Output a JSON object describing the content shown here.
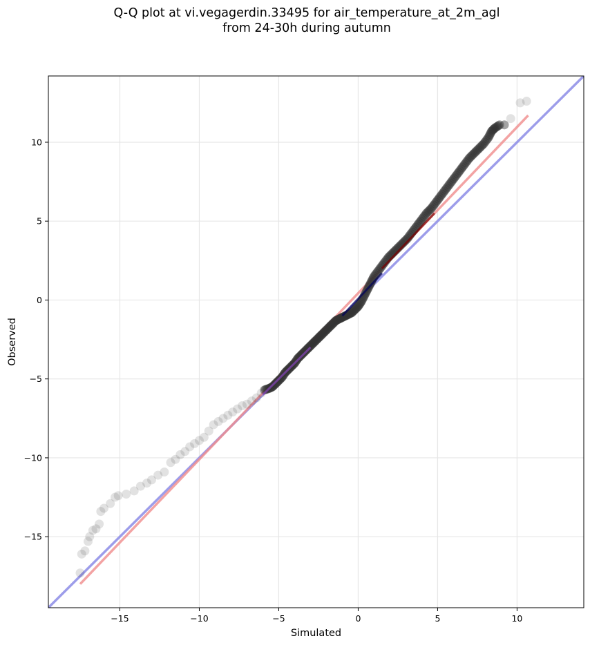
{
  "chart_data": {
    "type": "scatter",
    "title": "Q-Q plot at vi.vegagerdin.33495 for air_temperature_at_2m_agl",
    "subtitle": "from 24-30h during autumn",
    "xlabel": "Simulated",
    "ylabel": "Observed",
    "xlim": [
      -19.5,
      14.2
    ],
    "ylim": [
      -19.5,
      14.2
    ],
    "xticks": [
      -15,
      -10,
      -5,
      0,
      5,
      10
    ],
    "yticks": [
      -15,
      -10,
      -5,
      0,
      5,
      10
    ],
    "xtick_labels": [
      "−15",
      "−10",
      "−5",
      "0",
      "5",
      "10"
    ],
    "ytick_labels": [
      "−15",
      "−10",
      "−5",
      "0",
      "5",
      "10"
    ],
    "grid": true,
    "colors": {
      "points": "#333333",
      "identity_line": "#8c8ce6",
      "fit_line": "#f08c8c",
      "lower_segment": "#8844bb",
      "center_segment": "#00005a",
      "upper_segment": "#7a0000"
    },
    "quantile_points": [
      [
        -17.5,
        -17.3
      ],
      [
        -17.4,
        -16.1
      ],
      [
        -17.2,
        -15.9
      ],
      [
        -17.0,
        -15.3
      ],
      [
        -16.9,
        -15.0
      ],
      [
        -16.7,
        -14.6
      ],
      [
        -16.5,
        -14.5
      ],
      [
        -16.3,
        -14.2
      ],
      [
        -16.2,
        -13.4
      ],
      [
        -16.0,
        -13.2
      ],
      [
        -15.6,
        -12.9
      ],
      [
        -15.3,
        -12.5
      ],
      [
        -15.1,
        -12.4
      ],
      [
        -14.6,
        -12.3
      ],
      [
        -14.1,
        -12.1
      ],
      [
        -13.7,
        -11.8
      ],
      [
        -13.3,
        -11.6
      ],
      [
        -13.0,
        -11.4
      ],
      [
        -12.6,
        -11.1
      ],
      [
        -12.2,
        -10.9
      ],
      [
        -11.8,
        -10.3
      ],
      [
        -11.5,
        -10.1
      ],
      [
        -11.2,
        -9.8
      ],
      [
        -10.9,
        -9.6
      ],
      [
        -10.6,
        -9.3
      ],
      [
        -10.3,
        -9.1
      ],
      [
        -10.0,
        -8.9
      ],
      [
        -9.7,
        -8.7
      ],
      [
        -9.4,
        -8.3
      ],
      [
        -9.1,
        -7.9
      ],
      [
        -8.8,
        -7.7
      ],
      [
        -8.5,
        -7.5
      ],
      [
        -8.2,
        -7.3
      ],
      [
        -7.9,
        -7.1
      ],
      [
        -7.6,
        -6.9
      ],
      [
        -7.3,
        -6.7
      ],
      [
        -7.0,
        -6.6
      ],
      [
        -6.7,
        -6.4
      ],
      [
        -6.4,
        -6.2
      ],
      [
        -6.1,
        -5.9
      ],
      [
        -5.9,
        -5.7
      ],
      [
        -5.6,
        -5.6
      ],
      [
        -5.4,
        -5.5
      ],
      [
        -5.2,
        -5.3
      ],
      [
        -5.0,
        -5.1
      ],
      [
        -4.8,
        -4.9
      ],
      [
        -4.6,
        -4.6
      ],
      [
        -4.4,
        -4.4
      ],
      [
        -4.2,
        -4.2
      ],
      [
        -4.0,
        -4.0
      ],
      [
        -3.8,
        -3.7
      ],
      [
        -3.6,
        -3.5
      ],
      [
        -3.4,
        -3.3
      ],
      [
        -3.2,
        -3.1
      ],
      [
        -3.0,
        -2.9
      ],
      [
        -2.8,
        -2.7
      ],
      [
        -2.6,
        -2.5
      ],
      [
        -2.4,
        -2.3
      ],
      [
        -2.2,
        -2.1
      ],
      [
        -2.0,
        -1.9
      ],
      [
        -1.8,
        -1.7
      ],
      [
        -1.6,
        -1.5
      ],
      [
        -1.4,
        -1.3
      ],
      [
        -1.2,
        -1.2
      ],
      [
        -1.0,
        -1.1
      ],
      [
        -0.8,
        -1.0
      ],
      [
        -0.6,
        -0.9
      ],
      [
        -0.4,
        -0.8
      ],
      [
        -0.2,
        -0.6
      ],
      [
        0.0,
        -0.4
      ],
      [
        0.2,
        -0.1
      ],
      [
        0.4,
        0.3
      ],
      [
        0.6,
        0.7
      ],
      [
        0.8,
        1.1
      ],
      [
        1.0,
        1.5
      ],
      [
        1.3,
        1.9
      ],
      [
        1.6,
        2.3
      ],
      [
        1.9,
        2.7
      ],
      [
        2.2,
        3.0
      ],
      [
        2.5,
        3.3
      ],
      [
        2.8,
        3.6
      ],
      [
        3.1,
        3.9
      ],
      [
        3.4,
        4.3
      ],
      [
        3.7,
        4.7
      ],
      [
        4.0,
        5.1
      ],
      [
        4.3,
        5.5
      ],
      [
        4.6,
        5.8
      ],
      [
        4.9,
        6.2
      ],
      [
        5.2,
        6.6
      ],
      [
        5.5,
        7.0
      ],
      [
        5.8,
        7.4
      ],
      [
        6.1,
        7.8
      ],
      [
        6.4,
        8.2
      ],
      [
        6.7,
        8.6
      ],
      [
        7.0,
        9.0
      ],
      [
        7.3,
        9.3
      ],
      [
        7.6,
        9.6
      ],
      [
        7.9,
        9.9
      ],
      [
        8.2,
        10.3
      ],
      [
        8.4,
        10.7
      ],
      [
        8.6,
        10.9
      ],
      [
        8.9,
        11.1
      ],
      [
        9.2,
        11.1
      ],
      [
        9.6,
        11.5
      ],
      [
        10.2,
        12.5
      ],
      [
        10.6,
        12.6
      ]
    ],
    "identity_line": {
      "x": [
        -19.5,
        14.2
      ],
      "y": [
        -19.5,
        14.2
      ]
    },
    "fit_line": {
      "x": [
        -17.5,
        10.7
      ],
      "y": [
        -18.0,
        11.7
      ]
    },
    "segments": [
      {
        "x": [
          -6.0,
          -3.0
        ],
        "y": [
          -6.0,
          -3.0
        ],
        "color_key": "lower_segment"
      },
      {
        "x": [
          -1.0,
          1.5
        ],
        "y": [
          -1.0,
          1.7
        ],
        "color_key": "center_segment"
      },
      {
        "x": [
          1.5,
          4.8
        ],
        "y": [
          2.0,
          5.5
        ],
        "color_key": "upper_segment"
      }
    ]
  }
}
